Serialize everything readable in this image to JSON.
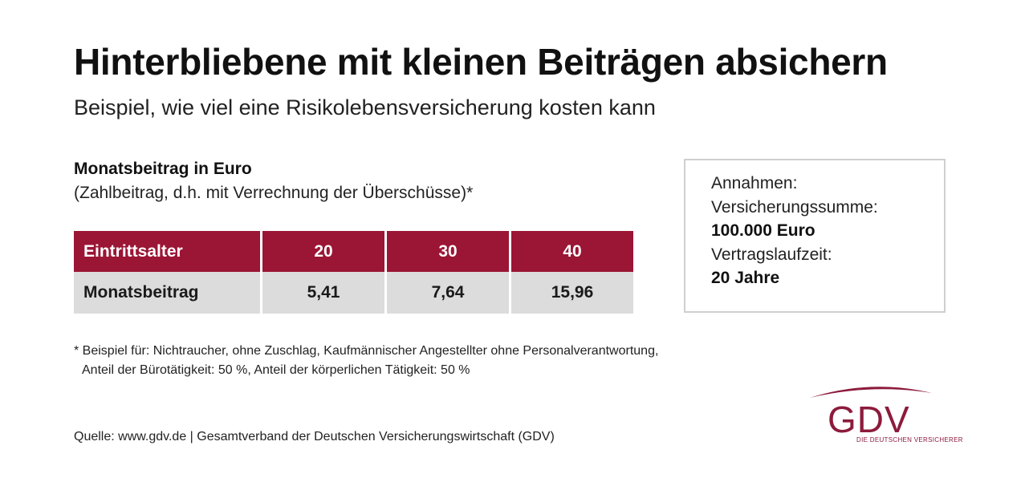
{
  "header": {
    "title": "Hinterbliebene mit kleinen Beiträgen absichern",
    "subtitle": "Beispiel, wie viel eine Risikolebensversicherung kosten kann"
  },
  "section": {
    "label": "Monatsbeitrag in Euro",
    "note": "(Zahlbeitrag, d.h. mit Verrechnung der Überschüsse)*"
  },
  "table": {
    "header": [
      "Eintrittsalter",
      "20",
      "30",
      "40"
    ],
    "row": [
      "Monatsbeitrag",
      "5,41",
      "7,64",
      "15,96"
    ]
  },
  "assumptions": {
    "heading": "Annahmen:",
    "sum_label": "Versicherungssumme:",
    "sum_value": "100.000 Euro",
    "term_label": "Vertragslaufzeit:",
    "term_value": "20 Jahre"
  },
  "footnote": {
    "line1": "* Beispiel für: Nichtraucher, ohne Zuschlag, Kaufmännischer Angestellter ohne Personalverantwortung,",
    "line2": "Anteil der Bürotätigkeit: 50 %, Anteil der körperlichen Tätigkeit: 50 %"
  },
  "source": "Quelle: www.gdv.de | Gesamtverband der Deutschen Versicherungswirtschaft (GDV)",
  "logo": {
    "mark": "GDV",
    "tagline": "DIE DEUTSCHEN VERSICHERER",
    "color": "#8c1b3c"
  },
  "colors": {
    "header_bg": "#9b1535",
    "row_bg": "#dcdcdc"
  }
}
